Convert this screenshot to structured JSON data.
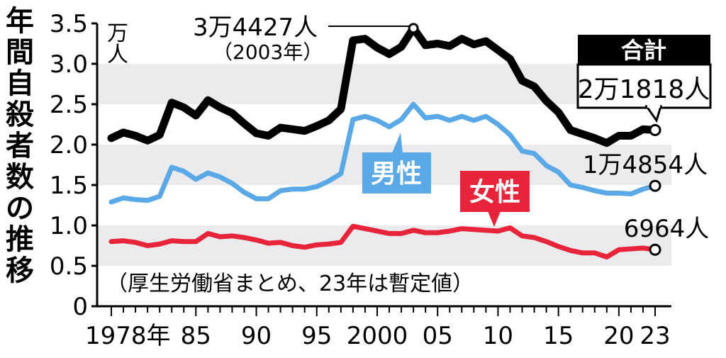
{
  "chart_data": {
    "type": "line",
    "title": "年間自殺者数の推移",
    "y_unit": "万人",
    "source_note": "（厚生労働省まとめ、23年は暫定値）",
    "ylim": [
      0,
      3.5
    ],
    "y_ticks": [
      "0",
      "0.5",
      "1.0",
      "1.5",
      "2.0",
      "2.5",
      "3.0",
      "3.5"
    ],
    "x_range": [
      1978,
      2023
    ],
    "x_tick_labels": [
      {
        "year": 1978,
        "label": "1978年"
      },
      {
        "year": 1985,
        "label": "85"
      },
      {
        "year": 1990,
        "label": "90"
      },
      {
        "year": 1995,
        "label": "95"
      },
      {
        "year": 2000,
        "label": "2000"
      },
      {
        "year": 2005,
        "label": "05"
      },
      {
        "year": 2010,
        "label": "10"
      },
      {
        "year": 2015,
        "label": "15"
      },
      {
        "year": 2020,
        "label": "20"
      },
      {
        "year": 2023,
        "label": "23"
      }
    ],
    "grid": "alternating horizontal bands",
    "x": [
      1978,
      1979,
      1980,
      1981,
      1982,
      1983,
      1984,
      1985,
      1986,
      1987,
      1988,
      1989,
      1990,
      1991,
      1992,
      1993,
      1994,
      1995,
      1996,
      1997,
      1998,
      1999,
      2000,
      2001,
      2002,
      2003,
      2004,
      2005,
      2006,
      2007,
      2008,
      2009,
      2010,
      2011,
      2012,
      2013,
      2014,
      2015,
      2016,
      2017,
      2018,
      2019,
      2020,
      2021,
      2022,
      2023
    ],
    "series": [
      {
        "name": "合計",
        "color": "#000000",
        "values": [
          2.08,
          2.15,
          2.11,
          2.05,
          2.12,
          2.52,
          2.46,
          2.36,
          2.55,
          2.46,
          2.39,
          2.26,
          2.14,
          2.11,
          2.21,
          2.19,
          2.17,
          2.23,
          2.3,
          2.44,
          3.29,
          3.31,
          3.2,
          3.12,
          3.21,
          3.44,
          3.23,
          3.25,
          3.22,
          3.31,
          3.24,
          3.28,
          3.17,
          3.06,
          2.79,
          2.72,
          2.54,
          2.4,
          2.18,
          2.13,
          2.08,
          2.02,
          2.11,
          2.11,
          2.19,
          2.18
        ]
      },
      {
        "name": "男性",
        "color": "#5aa8e6",
        "values": [
          1.29,
          1.34,
          1.32,
          1.31,
          1.36,
          1.72,
          1.67,
          1.57,
          1.65,
          1.6,
          1.52,
          1.41,
          1.33,
          1.33,
          1.43,
          1.45,
          1.45,
          1.48,
          1.55,
          1.64,
          2.31,
          2.35,
          2.3,
          2.22,
          2.31,
          2.5,
          2.33,
          2.35,
          2.3,
          2.35,
          2.3,
          2.35,
          2.25,
          2.12,
          1.92,
          1.89,
          1.74,
          1.66,
          1.5,
          1.47,
          1.43,
          1.4,
          1.4,
          1.39,
          1.45,
          1.49
        ]
      },
      {
        "name": "女性",
        "color": "#e8243a",
        "values": [
          0.8,
          0.81,
          0.79,
          0.75,
          0.77,
          0.81,
          0.8,
          0.8,
          0.9,
          0.86,
          0.87,
          0.85,
          0.82,
          0.78,
          0.79,
          0.75,
          0.73,
          0.76,
          0.77,
          0.79,
          0.99,
          0.96,
          0.93,
          0.9,
          0.9,
          0.94,
          0.91,
          0.91,
          0.93,
          0.96,
          0.95,
          0.94,
          0.93,
          0.97,
          0.87,
          0.85,
          0.8,
          0.74,
          0.69,
          0.66,
          0.66,
          0.61,
          0.7,
          0.71,
          0.72,
          0.7
        ]
      }
    ],
    "annotations": {
      "peak_value": "3万4427人",
      "peak_year": "（2003年）",
      "total_box_label": "合計",
      "total_2023": "2万1818人",
      "male_label": "男性",
      "male_2023": "1万4854人",
      "female_label": "女性",
      "female_2023": "6964人"
    }
  }
}
